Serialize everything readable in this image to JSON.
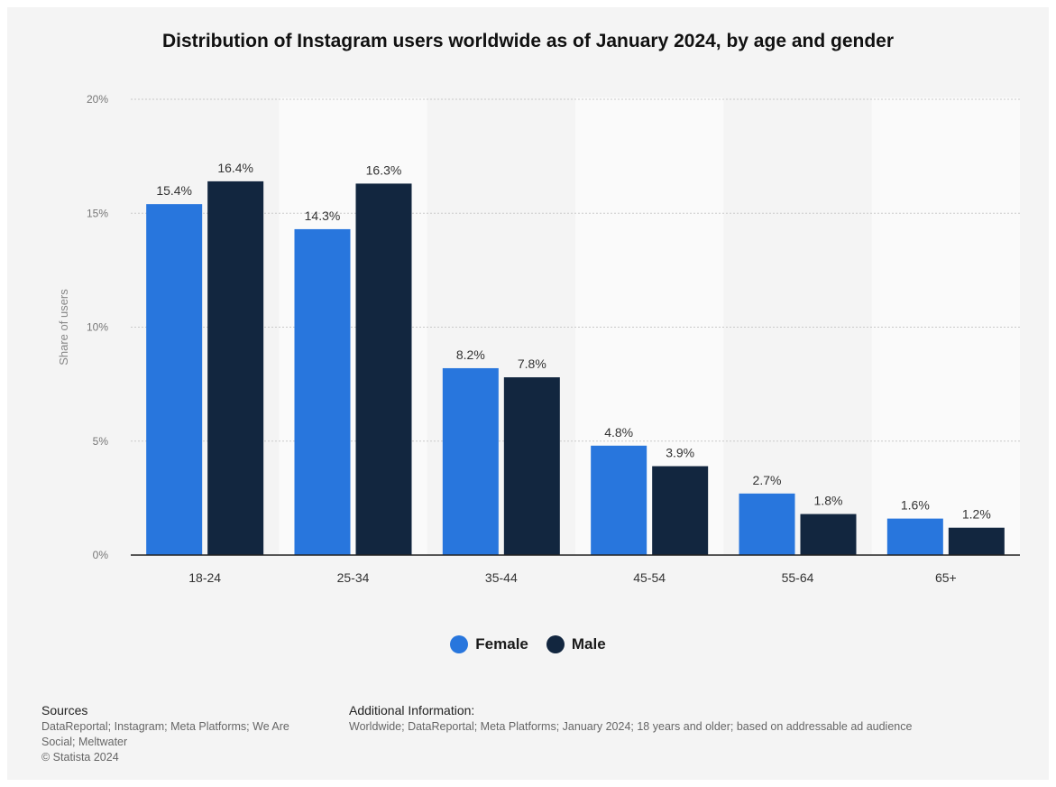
{
  "title": "Distribution of Instagram users worldwide as of January 2024, by age and gender",
  "colors": {
    "female": "#2876dd",
    "male": "#12263f",
    "panel": "#f4f4f4",
    "band": "#fafafa"
  },
  "chart_data": {
    "type": "bar",
    "title": "Distribution of Instagram users worldwide as of January 2024, by age and gender",
    "xlabel": "",
    "ylabel": "Share of users",
    "ylim": [
      0,
      20
    ],
    "yticks": [
      0,
      5,
      10,
      15,
      20
    ],
    "ytick_labels": [
      "0%",
      "5%",
      "10%",
      "15%",
      "20%"
    ],
    "categories": [
      "18-24",
      "25-34",
      "35-44",
      "45-54",
      "55-64",
      "65+"
    ],
    "series": [
      {
        "name": "Female",
        "values": [
          15.4,
          14.3,
          8.2,
          4.8,
          2.7,
          1.6
        ],
        "labels": [
          "15.4%",
          "14.3%",
          "8.2%",
          "4.8%",
          "2.7%",
          "1.6%"
        ]
      },
      {
        "name": "Male",
        "values": [
          16.4,
          16.3,
          7.8,
          3.9,
          1.8,
          1.2
        ],
        "labels": [
          "16.4%",
          "16.3%",
          "7.8%",
          "3.9%",
          "1.8%",
          "1.2%"
        ]
      }
    ],
    "grid": true,
    "legend": "bottom-center"
  },
  "legend": {
    "female": "Female",
    "male": "Male"
  },
  "sources": {
    "heading": "Sources",
    "lines": [
      "DataReportal; Instagram; Meta Platforms; We Are",
      "Social; Meltwater",
      "© Statista 2024"
    ]
  },
  "additional": {
    "heading": "Additional Information:",
    "text": "Worldwide; DataReportal; Meta Platforms; January 2024; 18 years and older; based on addressable ad audience"
  }
}
